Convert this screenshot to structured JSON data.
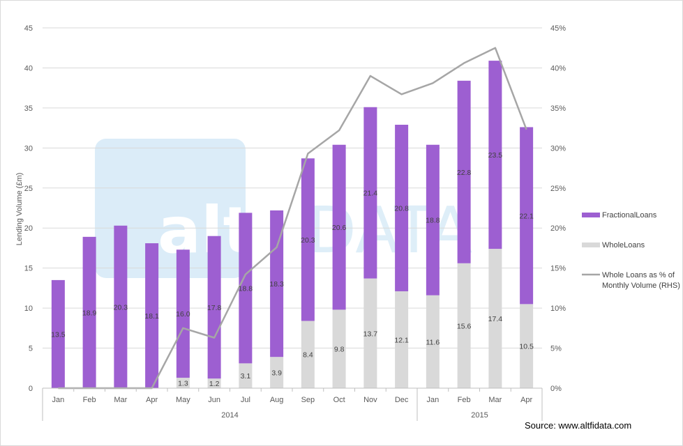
{
  "chart_data": {
    "type": "bar",
    "stacked": true,
    "categories": [
      "Jan",
      "Feb",
      "Mar",
      "Apr",
      "May",
      "Jun",
      "Jul",
      "Aug",
      "Sep",
      "Oct",
      "Nov",
      "Dec",
      "Jan",
      "Feb",
      "Mar",
      "Apr"
    ],
    "year_groups": [
      {
        "label": "2014",
        "count": 12
      },
      {
        "label": "2015",
        "count": 4
      }
    ],
    "series": [
      {
        "name": "WholeLoans",
        "color": "#d9d9d9",
        "values": [
          0,
          0,
          0,
          0,
          1.3,
          1.2,
          3.1,
          3.9,
          8.4,
          9.8,
          13.7,
          12.1,
          11.6,
          15.6,
          17.4,
          10.5
        ],
        "labels": [
          "",
          "",
          "",
          "",
          "1.3",
          "1.2",
          "3.1",
          "3.9",
          "8.4",
          "9.8",
          "13.7",
          "12.1",
          "11.6",
          "15.6",
          "17.4",
          "10.5"
        ]
      },
      {
        "name": "FractionalLoans",
        "color": "#9d5fd1",
        "values": [
          13.5,
          18.9,
          20.3,
          18.1,
          16.0,
          17.8,
          18.8,
          18.3,
          20.3,
          20.6,
          21.4,
          20.8,
          18.8,
          22.8,
          23.5,
          22.1
        ],
        "labels": [
          "13.5",
          "18.9",
          "20.3",
          "18.1",
          "16.0",
          "17.8",
          "18.8",
          "18.3",
          "20.3",
          "20.6",
          "21.4",
          "20.8",
          "18.8",
          "22.8",
          "23.5",
          "22.1"
        ]
      }
    ],
    "line": {
      "name": "Whole Loans as % of Monthly Volume (RHS)",
      "color": "#a6a6a6",
      "legend_lines": [
        "Whole Loans as % of",
        "Monthly Volume (RHS)"
      ],
      "values": [
        0,
        0,
        0,
        0,
        7.5,
        6.3,
        14.2,
        17.6,
        29.3,
        32.2,
        39.0,
        36.7,
        38.1,
        40.6,
        42.5,
        32.3
      ]
    },
    "ylabel": "Lending Volume (£m)",
    "ylim": [
      0,
      45
    ],
    "yticks": [
      "0",
      "5",
      "10",
      "15",
      "20",
      "25",
      "30",
      "35",
      "40",
      "45"
    ],
    "y2lim": [
      0,
      45
    ],
    "y2ticks": [
      "0%",
      "5%",
      "10%",
      "15%",
      "20%",
      "25%",
      "30%",
      "35%",
      "40%",
      "45%"
    ],
    "legend": [
      "FractionalLoans",
      "WholeLoans"
    ],
    "grid": true,
    "watermark": "altfiDATA"
  },
  "source": "Source: www.altfidata.com"
}
